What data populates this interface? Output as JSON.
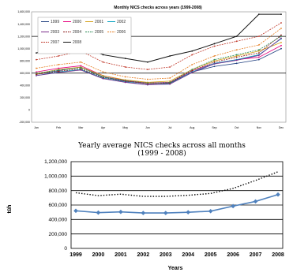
{
  "chart_data": [
    {
      "type": "line",
      "title": "Monthly NICS checks across years (1999-2008)",
      "x": [
        "Jan",
        "Feb",
        "Mar",
        "Apr",
        "May",
        "Jun",
        "Jul",
        "Aug",
        "Sep",
        "Oct",
        "Nov",
        "Dec"
      ],
      "ylim": [
        -200000,
        1600000
      ],
      "ytick_labels": [
        "1,600,000",
        "1,400,000",
        "1,200,000",
        "1,000,000",
        "800,000",
        "600,000",
        "400,000",
        "200,000",
        "0",
        "-200,000"
      ],
      "ytick_values": [
        1600000,
        1400000,
        1200000,
        1000000,
        800000,
        600000,
        400000,
        200000,
        0,
        -200000
      ],
      "legend_placement": "top-left",
      "series": [
        {
          "name": "1999",
          "color": "#1f3f7f",
          "values": [
            580000,
            640000,
            700000,
            540000,
            470000,
            430000,
            440000,
            620000,
            710000,
            760000,
            820000,
            1000000
          ]
        },
        {
          "name": "2000",
          "color": "#e6007e",
          "values": [
            620000,
            680000,
            720000,
            560000,
            480000,
            440000,
            450000,
            640000,
            760000,
            820000,
            860000,
            1050000
          ]
        },
        {
          "name": "2001",
          "color": "#d4a017",
          "values": [
            590000,
            660000,
            700000,
            560000,
            490000,
            450000,
            470000,
            660000,
            800000,
            880000,
            960000,
            1100000
          ]
        },
        {
          "name": "2002",
          "color": "#00a0c0",
          "values": [
            560000,
            620000,
            660000,
            520000,
            460000,
            410000,
            430000,
            620000,
            760000,
            820000,
            900000,
            1160000
          ]
        },
        {
          "name": "2003",
          "color": "#7b2d8b",
          "values": [
            560000,
            610000,
            650000,
            510000,
            450000,
            410000,
            420000,
            610000,
            750000,
            810000,
            890000,
            1170000
          ]
        },
        {
          "name": "2004",
          "color": "#8b1a1a",
          "values": [
            580000,
            630000,
            670000,
            530000,
            470000,
            430000,
            440000,
            640000,
            780000,
            860000,
            930000,
            1220000
          ]
        },
        {
          "name": "2005",
          "color": "#2e8b57",
          "values": [
            600000,
            650000,
            690000,
            540000,
            480000,
            440000,
            450000,
            660000,
            820000,
            900000,
            980000,
            1200000
          ]
        },
        {
          "name": "2006",
          "color": "#e67e22",
          "values": [
            680000,
            740000,
            780000,
            620000,
            540000,
            500000,
            520000,
            740000,
            880000,
            980000,
            1060000,
            1330000
          ]
        },
        {
          "name": "2007",
          "color": "#c0392b",
          "values": [
            820000,
            880000,
            960000,
            780000,
            700000,
            660000,
            700000,
            900000,
            1040000,
            1120000,
            1200000,
            1420000
          ]
        },
        {
          "name": "2008",
          "color": "#111111",
          "values": [
            930000,
            1000000,
            1060000,
            900000,
            840000,
            780000,
            880000,
            960000,
            1080000,
            1200000,
            1560000,
            1560000
          ]
        }
      ]
    },
    {
      "type": "line",
      "title": "Yearly average NICS checks across all months",
      "subtitle": "(1999 - 2008)",
      "xlabel": "Years",
      "ylabel": "tüh",
      "ylim": [
        0,
        1200000
      ],
      "ytick_labels": [
        "0",
        "200,000",
        "400,000",
        "600,000",
        "800,000",
        "1,000,000",
        "1,200,000"
      ],
      "ytick_values": [
        0,
        200000,
        400000,
        600000,
        800000,
        1000000,
        1200000
      ],
      "x": [
        "1999",
        "2000",
        "2001",
        "2002",
        "2003",
        "2004",
        "2005",
        "2006",
        "2007",
        "2008"
      ],
      "series": [
        {
          "style": "solid-markers",
          "color": "#4f81bd",
          "values": [
            520000,
            495000,
            505000,
            490000,
            490000,
            500000,
            515000,
            585000,
            650000,
            745000
          ]
        },
        {
          "style": "dotted-trend",
          "color": "#111111",
          "values": [
            770000,
            730000,
            750000,
            720000,
            720000,
            735000,
            760000,
            830000,
            940000,
            1060000
          ]
        }
      ]
    }
  ]
}
